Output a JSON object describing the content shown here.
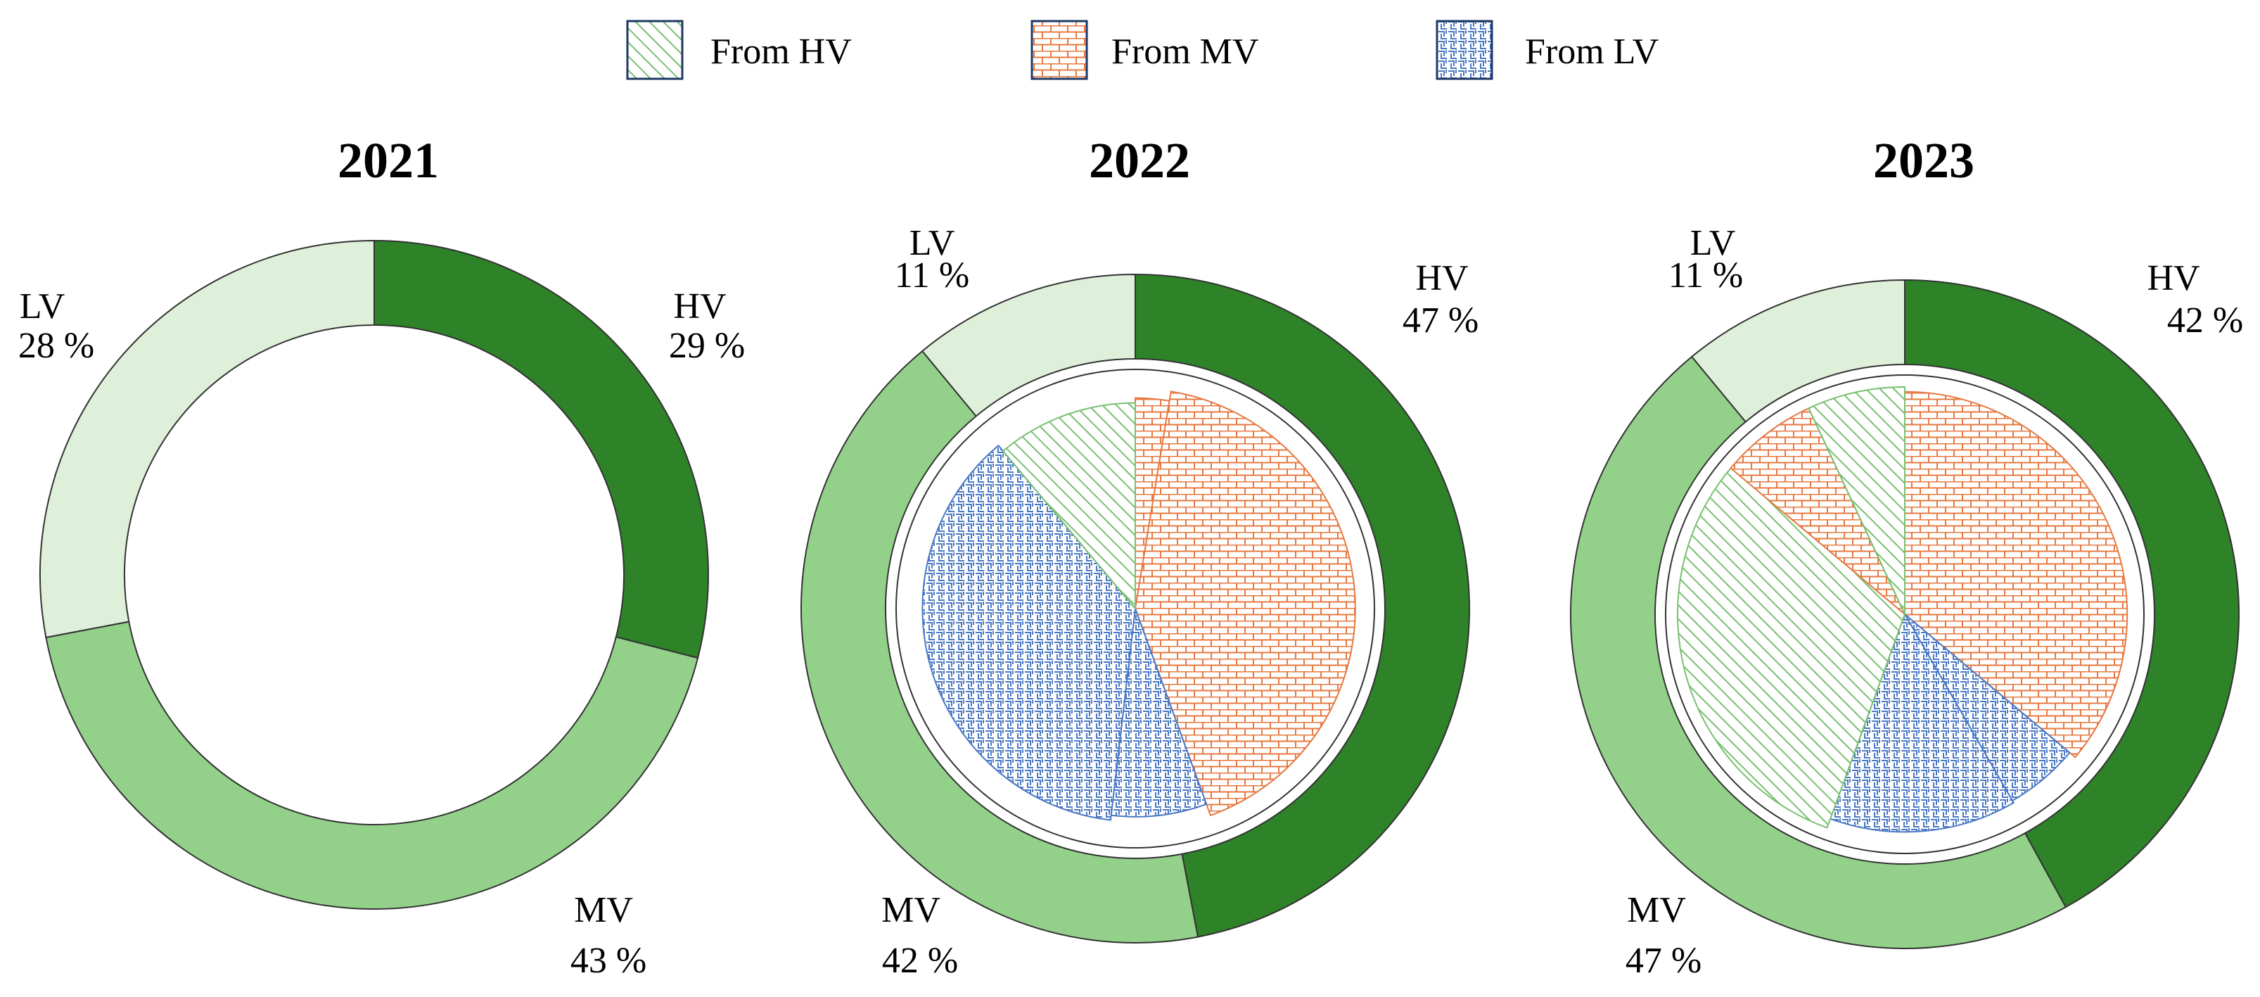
{
  "chart_data": [
    {
      "type": "pie",
      "title": "2021",
      "ring": [
        {
          "name": "HV",
          "value": 29,
          "label": "HV",
          "pct": "29 %"
        },
        {
          "name": "MV",
          "value": 43,
          "label": "MV",
          "pct": "43 %"
        },
        {
          "name": "LV",
          "value": 28,
          "label": "LV",
          "pct": "28 %"
        }
      ],
      "inner": []
    },
    {
      "type": "pie",
      "title": "2022",
      "ring": [
        {
          "name": "HV",
          "value": 47,
          "label": "HV",
          "pct": "47 %"
        },
        {
          "name": "MV",
          "value": 42,
          "label": "MV",
          "pct": "42 %"
        },
        {
          "name": "LV",
          "value": 11,
          "label": "LV",
          "pct": "11 %"
        }
      ],
      "inner": [
        {
          "from": "MV",
          "value": 1.4,
          "radius": 0.88
        },
        {
          "from": "MV",
          "value": 22.6,
          "radius": 0.92
        },
        {
          "from": "LV",
          "value": 4,
          "radius": 0.87
        },
        {
          "from": "LV",
          "value": 20,
          "radius": 0.89
        },
        {
          "from": "HV",
          "value": 6,
          "radius": 0.86
        }
      ]
    },
    {
      "type": "pie",
      "title": "2023",
      "ring": [
        {
          "name": "HV",
          "value": 42,
          "label": "HV",
          "pct": "42 %"
        },
        {
          "name": "MV",
          "value": 47,
          "label": "MV",
          "pct": "47 %"
        },
        {
          "name": "LV",
          "value": 11,
          "label": "LV",
          "pct": "11 %"
        }
      ],
      "inner": [
        {
          "from": "MV",
          "value": 26,
          "radius": 0.93
        },
        {
          "from": "LV",
          "value": 4,
          "radius": 0.9
        },
        {
          "from": "LV",
          "value": 10,
          "radius": 0.91
        },
        {
          "from": "HV",
          "value": 22,
          "radius": 0.95
        },
        {
          "from": "MV",
          "value": 5,
          "radius": 0.95
        },
        {
          "from": "HV",
          "value": 5,
          "radius": 0.95
        }
      ]
    }
  ],
  "legend": [
    {
      "key": "HV",
      "label": "From HV"
    },
    {
      "key": "MV",
      "label": "From MV"
    },
    {
      "key": "LV",
      "label": "From LV"
    }
  ],
  "colors": {
    "HV": "#2e8228",
    "MV": "#93d18a",
    "LV": "#dff0da",
    "hatch_hv": "#78c070",
    "hatch_mv": "#e67840",
    "hatch_lv": "#4a78c4",
    "outline": "#333333"
  }
}
